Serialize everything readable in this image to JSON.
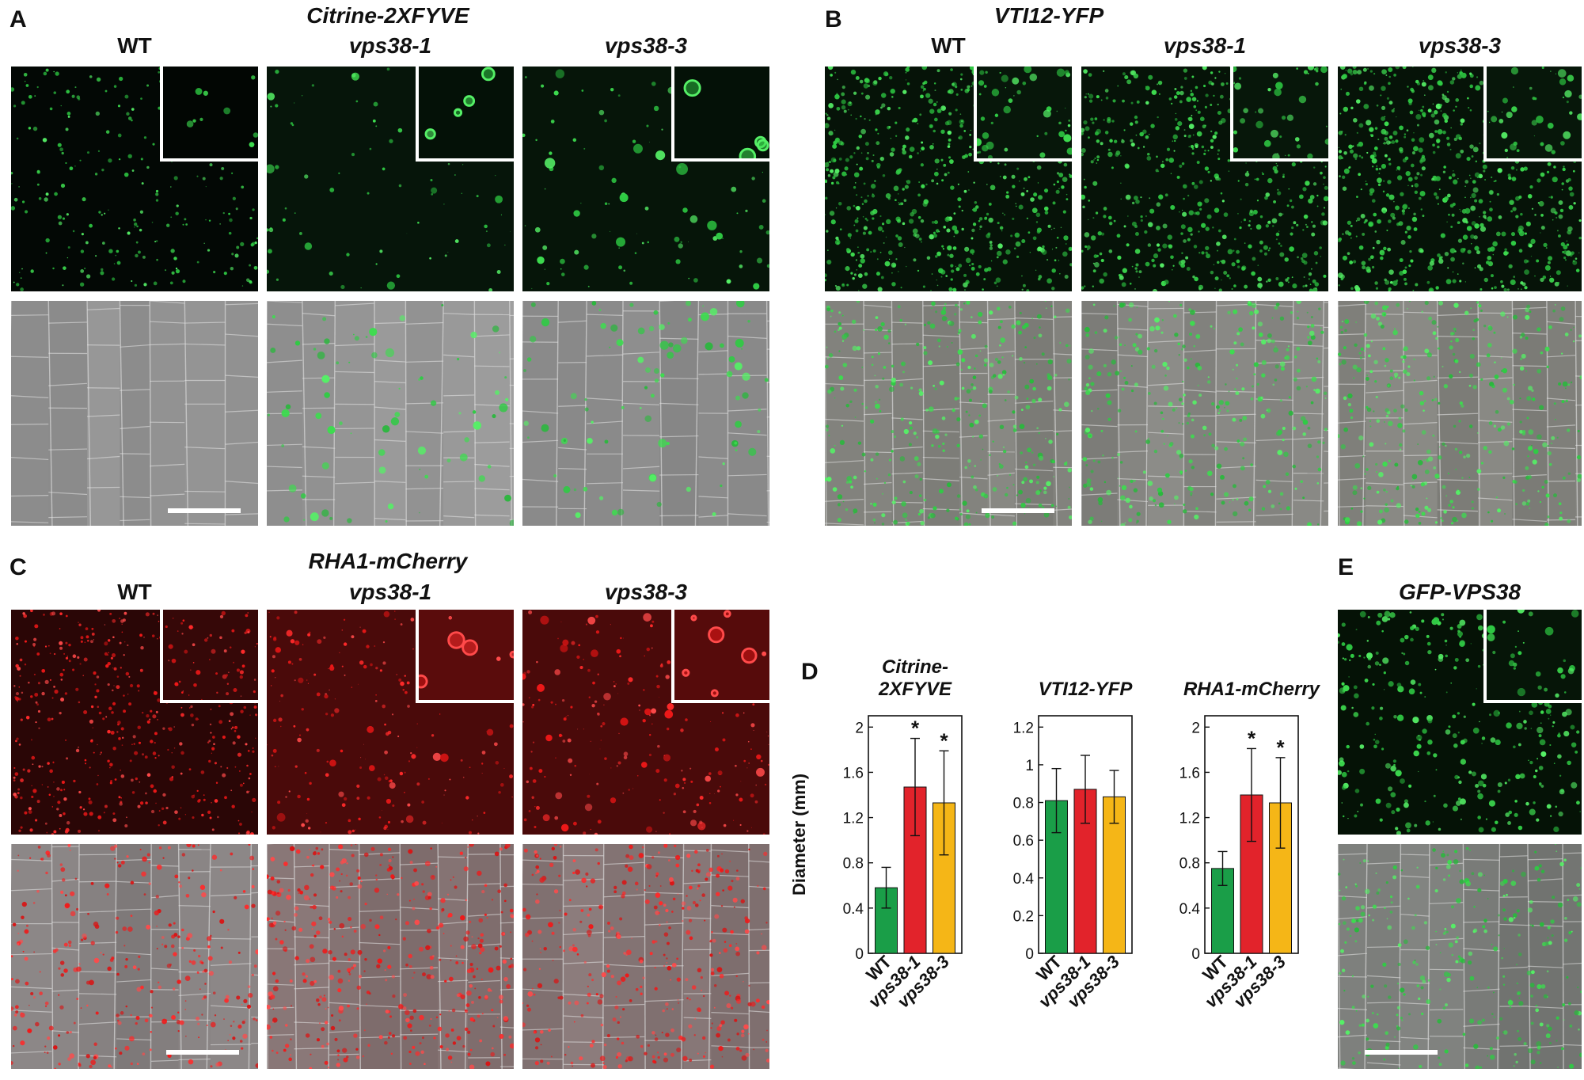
{
  "panels": {
    "A": {
      "letter": "A",
      "title": "Citrine-2XFYVE",
      "cols": [
        "WT",
        "vps38-1",
        "vps38-3"
      ]
    },
    "B": {
      "letter": "B",
      "title": "VTI12-YFP",
      "cols": [
        "WT",
        "vps38-1",
        "vps38-3"
      ]
    },
    "C": {
      "letter": "C",
      "title": "RHA1-mCherry",
      "cols": [
        "WT",
        "vps38-1",
        "vps38-3"
      ]
    },
    "D": {
      "letter": "D"
    },
    "E": {
      "letter": "E",
      "title": "GFP-VPS38"
    }
  },
  "colors": {
    "wt": "#1a9e48",
    "vps38_1": "#e2232b",
    "vps38_3": "#f5b617",
    "green_signal": "#35e14a",
    "red_signal": "#ff2020"
  },
  "chart_data": [
    {
      "type": "bar",
      "title": "Citrine-\n2XFYVE",
      "title_lines": [
        "Citrine-",
        "2XFYVE"
      ],
      "ylabel": "Diameter (mm)",
      "categories": [
        "WT",
        "vps38-1",
        "vps38-3"
      ],
      "values": [
        0.58,
        1.47,
        1.33
      ],
      "errors": [
        0.18,
        0.43,
        0.46
      ],
      "significance": [
        "",
        "*",
        "*"
      ],
      "ylim": [
        0,
        2.1
      ],
      "yticks": [
        0,
        0.4,
        0.8,
        1.2,
        1.6,
        2
      ],
      "ytick_labels": [
        "0",
        "0.4",
        "0.8",
        "1.2",
        "1.6",
        "2"
      ]
    },
    {
      "type": "bar",
      "title": "VTI12-YFP",
      "title_lines": [
        "VTI12-YFP"
      ],
      "categories": [
        "WT",
        "vps38-1",
        "vps38-3"
      ],
      "values": [
        0.81,
        0.87,
        0.83
      ],
      "errors": [
        0.17,
        0.18,
        0.14
      ],
      "significance": [
        "",
        "",
        ""
      ],
      "ylim": [
        0,
        1.26
      ],
      "yticks": [
        0,
        0.2,
        0.4,
        0.6,
        0.8,
        1,
        1.2
      ],
      "ytick_labels": [
        "0",
        "0.2",
        "0.4",
        "0.6",
        "0.8",
        "1",
        "1.2"
      ]
    },
    {
      "type": "bar",
      "title": "RHA1-mCherry",
      "title_lines": [
        "RHA1-mCherry"
      ],
      "categories": [
        "WT",
        "vps38-1",
        "vps38-3"
      ],
      "values": [
        0.75,
        1.4,
        1.33
      ],
      "errors": [
        0.15,
        0.41,
        0.4
      ],
      "significance": [
        "",
        "*",
        "*"
      ],
      "ylim": [
        0,
        2.1
      ],
      "yticks": [
        0,
        0.4,
        0.8,
        1.2,
        1.6,
        2
      ],
      "ytick_labels": [
        "0",
        "0.4",
        "0.8",
        "1.2",
        "1.6",
        "2"
      ]
    }
  ]
}
